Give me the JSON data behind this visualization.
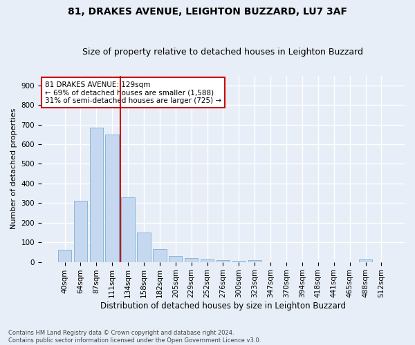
{
  "title1": "81, DRAKES AVENUE, LEIGHTON BUZZARD, LU7 3AF",
  "title2": "Size of property relative to detached houses in Leighton Buzzard",
  "xlabel": "Distribution of detached houses by size in Leighton Buzzard",
  "ylabel": "Number of detached properties",
  "categories": [
    "40sqm",
    "64sqm",
    "87sqm",
    "111sqm",
    "134sqm",
    "158sqm",
    "182sqm",
    "205sqm",
    "229sqm",
    "252sqm",
    "276sqm",
    "300sqm",
    "323sqm",
    "347sqm",
    "370sqm",
    "394sqm",
    "418sqm",
    "441sqm",
    "465sqm",
    "488sqm",
    "512sqm"
  ],
  "values": [
    62,
    310,
    685,
    650,
    330,
    150,
    65,
    30,
    18,
    12,
    8,
    5,
    8,
    0,
    0,
    0,
    0,
    0,
    0,
    12,
    0
  ],
  "bar_color": "#c5d8f0",
  "bar_edge_color": "#7bafd4",
  "vline_x_idx": 3.5,
  "vline_color": "#cc0000",
  "annotation_text": "81 DRAKES AVENUE: 129sqm\n← 69% of detached houses are smaller (1,588)\n31% of semi-detached houses are larger (725) →",
  "annotation_box_facecolor": "#ffffff",
  "annotation_box_edgecolor": "#cc0000",
  "ylim": [
    0,
    950
  ],
  "yticks": [
    0,
    100,
    200,
    300,
    400,
    500,
    600,
    700,
    800,
    900
  ],
  "footnote": "Contains HM Land Registry data © Crown copyright and database right 2024.\nContains public sector information licensed under the Open Government Licence v3.0.",
  "background_color": "#e8eef7",
  "grid_color": "#ffffff",
  "title1_fontsize": 10,
  "title2_fontsize": 9,
  "xlabel_fontsize": 8.5,
  "ylabel_fontsize": 8,
  "tick_fontsize": 7.5,
  "annotation_fontsize": 7.5,
  "footnote_fontsize": 6,
  "bar_width": 0.85
}
